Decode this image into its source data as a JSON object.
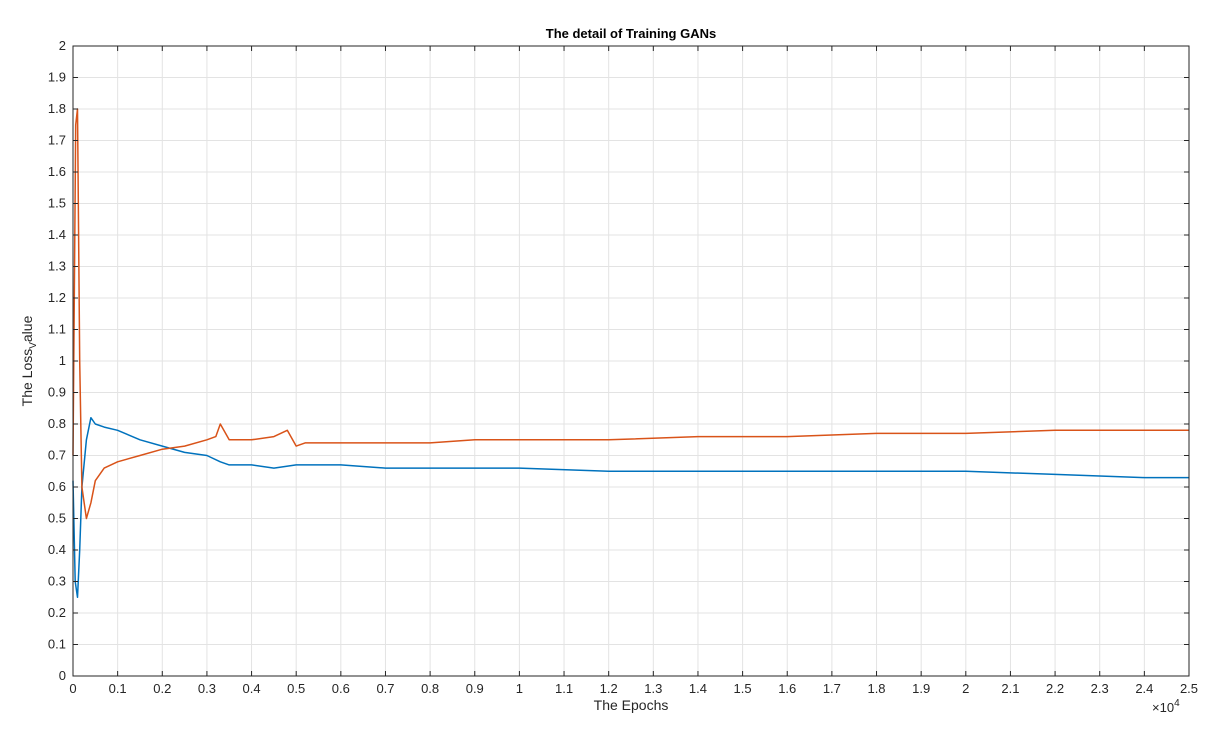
{
  "chart_data": {
    "type": "line",
    "title": "The detail of Training GANs",
    "xlabel": "The Epochs",
    "ylabel": "The Loss",
    "ylabel_subscript": "V",
    "ylabel_suffix": "alue",
    "x_exponent_label": "×10",
    "x_exponent_power": "4",
    "xlim": [
      0,
      2.5
    ],
    "ylim": [
      0,
      2
    ],
    "x_ticks": [
      0,
      0.1,
      0.2,
      0.3,
      0.4,
      0.5,
      0.6,
      0.7,
      0.8,
      0.9,
      1,
      1.1,
      1.2,
      1.3,
      1.4,
      1.5,
      1.6,
      1.7,
      1.8,
      1.9,
      2,
      2.1,
      2.2,
      2.3,
      2.4,
      2.5
    ],
    "y_ticks": [
      0,
      0.1,
      0.2,
      0.3,
      0.4,
      0.5,
      0.6,
      0.7,
      0.8,
      0.9,
      1,
      1.1,
      1.2,
      1.3,
      1.4,
      1.5,
      1.6,
      1.7,
      1.8,
      1.9,
      2
    ],
    "grid": true,
    "series": [
      {
        "color": "#0072BD",
        "x": [
          0,
          0.005,
          0.01,
          0.015,
          0.02,
          0.03,
          0.04,
          0.05,
          0.07,
          0.1,
          0.15,
          0.2,
          0.25,
          0.3,
          0.33,
          0.35,
          0.4,
          0.45,
          0.5,
          0.55,
          0.6,
          0.7,
          0.8,
          0.9,
          1.0,
          1.2,
          1.4,
          1.6,
          1.8,
          2.0,
          2.2,
          2.4,
          2.5
        ],
        "y": [
          0.62,
          0.3,
          0.25,
          0.4,
          0.6,
          0.75,
          0.82,
          0.8,
          0.79,
          0.78,
          0.75,
          0.73,
          0.71,
          0.7,
          0.68,
          0.67,
          0.67,
          0.66,
          0.67,
          0.67,
          0.67,
          0.66,
          0.66,
          0.66,
          0.66,
          0.65,
          0.65,
          0.65,
          0.65,
          0.65,
          0.64,
          0.63,
          0.63
        ]
      },
      {
        "color": "#D95319",
        "x": [
          0,
          0.003,
          0.006,
          0.01,
          0.015,
          0.02,
          0.03,
          0.04,
          0.05,
          0.07,
          0.1,
          0.15,
          0.2,
          0.25,
          0.3,
          0.32,
          0.33,
          0.35,
          0.4,
          0.45,
          0.48,
          0.5,
          0.52,
          0.6,
          0.7,
          0.8,
          0.9,
          1.0,
          1.2,
          1.4,
          1.6,
          1.8,
          2.0,
          2.2,
          2.4,
          2.5
        ],
        "y": [
          0.7,
          1.2,
          1.75,
          1.8,
          1.0,
          0.6,
          0.5,
          0.55,
          0.62,
          0.66,
          0.68,
          0.7,
          0.72,
          0.73,
          0.75,
          0.76,
          0.8,
          0.75,
          0.75,
          0.76,
          0.78,
          0.73,
          0.74,
          0.74,
          0.74,
          0.74,
          0.75,
          0.75,
          0.75,
          0.76,
          0.76,
          0.77,
          0.77,
          0.78,
          0.78,
          0.78
        ]
      }
    ]
  }
}
